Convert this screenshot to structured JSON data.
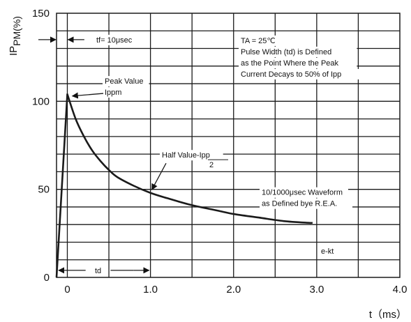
{
  "chart_data": {
    "type": "line",
    "ylabel_main": "IP",
    "ylabel_sub": "PM(%)",
    "xlabel": "t（ms）",
    "xlim": [
      -0.13,
      4.0
    ],
    "ylim": [
      0,
      150
    ],
    "xticks": [
      {
        "value": 0,
        "label": "0"
      },
      {
        "value": 1,
        "label": "1.0"
      },
      {
        "value": 2,
        "label": "2.0"
      },
      {
        "value": 3,
        "label": "3.0"
      },
      {
        "value": 4,
        "label": "4.0"
      }
    ],
    "yticks": [
      {
        "value": 0,
        "label": "0"
      },
      {
        "value": 50,
        "label": "50"
      },
      {
        "value": 100,
        "label": "100"
      },
      {
        "value": 150,
        "label": "150"
      }
    ],
    "grid": true,
    "series": [
      {
        "x": [
          -0.13,
          0.0,
          0.1,
          0.2,
          0.3,
          0.4,
          0.5,
          0.6,
          0.8,
          1.0,
          1.2,
          1.5,
          1.8,
          2.0,
          2.3,
          2.6,
          2.9,
          2.95
        ],
        "y": [
          0,
          104,
          90,
          80,
          72,
          66,
          61,
          57,
          52,
          48,
          45,
          41,
          38,
          36,
          34,
          32,
          31,
          31
        ]
      }
    ],
    "annotations": {
      "tf": "tf= 10μsec",
      "conditions": [
        "TA = 25℃",
        "Pulse Width (td) is Defined",
        "as the Point Where the Peak",
        "Current Decays to 50% of Ipp"
      ],
      "peak": [
        "Peak Value",
        "Ippm"
      ],
      "half_value": "Half Value-Ipp",
      "half_value_denominator": "2",
      "waveform": [
        "10/1000μsec Waveform",
        "as Defined bye R.E.A."
      ],
      "ekt": "e-kt",
      "td": "td"
    },
    "colors": {
      "grid": "#1a1a1a",
      "curve": "#1a1a1a",
      "text": "#111111"
    }
  }
}
